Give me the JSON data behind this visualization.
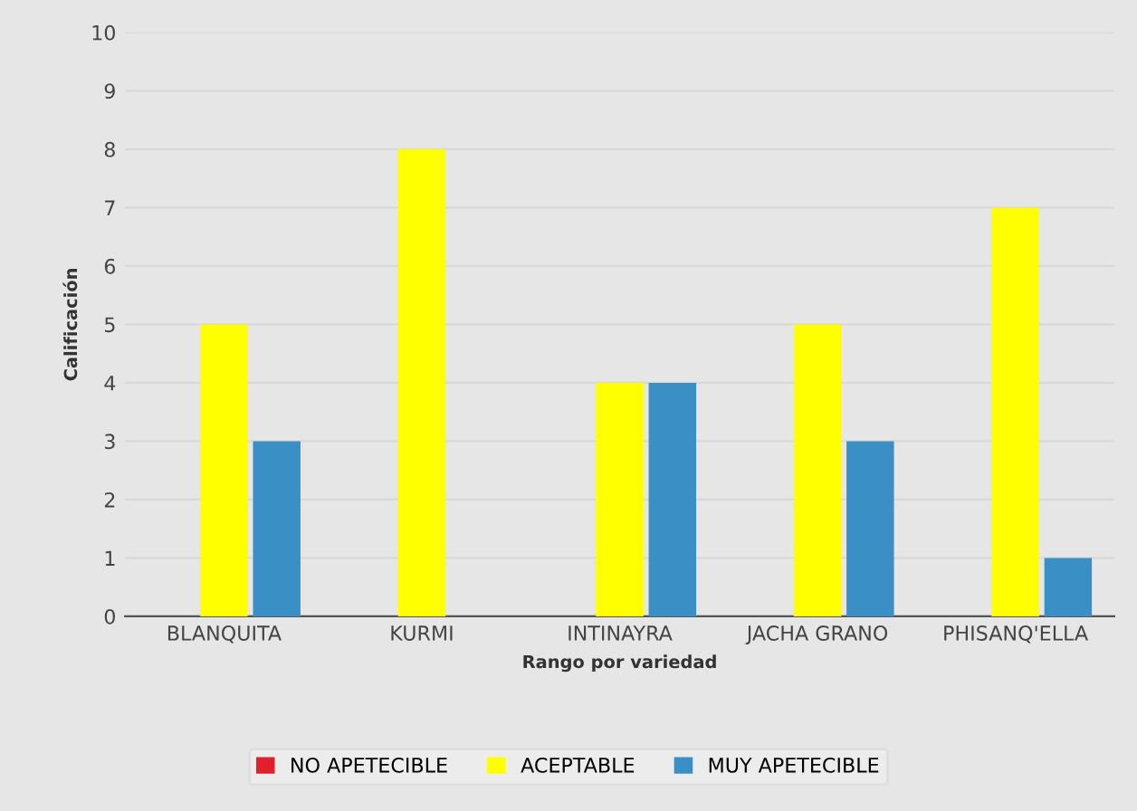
{
  "chart_data": {
    "type": "bar",
    "xlabel": "Rango por variedad",
    "ylabel": "Calificación",
    "categories": [
      "BLANQUITA",
      "KURMI",
      "INTINAYRA",
      "JACHA GRANO",
      "PHISANQ'ELLA"
    ],
    "series": [
      {
        "name": "NO APETECIBLE",
        "color": "#e0202a",
        "values": [
          0,
          0,
          0,
          0,
          0
        ]
      },
      {
        "name": "ACEPTABLE",
        "color": "#ffff00",
        "values": [
          5,
          8,
          4,
          5,
          7
        ]
      },
      {
        "name": "MUY APETECIBLE",
        "color": "#3a8fc4",
        "values": [
          3,
          0,
          4,
          3,
          1
        ]
      }
    ],
    "ylim": [
      0,
      10
    ],
    "yticks": [
      0,
      1,
      2,
      3,
      4,
      5,
      6,
      7,
      8,
      9,
      10
    ],
    "grid": "y",
    "legend": "bottom"
  }
}
